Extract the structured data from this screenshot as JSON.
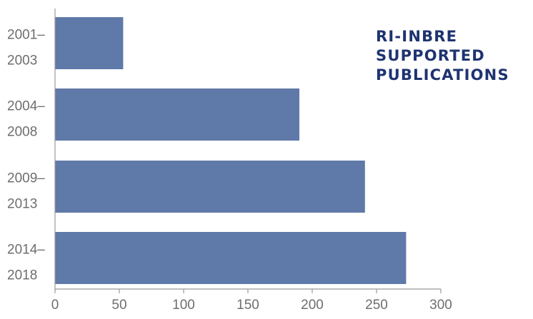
{
  "chart_data": {
    "type": "bar",
    "orientation": "horizontal",
    "title_lines": [
      "RI-INBRE",
      "SUPPORTED",
      "PUBLICATIONS"
    ],
    "categories": [
      [
        "2001–",
        "2003"
      ],
      [
        "2004–",
        "2008"
      ],
      [
        "2009–",
        "2013"
      ],
      [
        "2014–",
        "2018"
      ]
    ],
    "values": [
      53,
      190,
      241,
      273
    ],
    "xlim": [
      0,
      300
    ],
    "xticks": [
      "0",
      "50",
      "100",
      "150",
      "200",
      "250",
      "300"
    ],
    "bar_color": "#5f79a8",
    "title_color": "#1e3370",
    "grid": false
  }
}
